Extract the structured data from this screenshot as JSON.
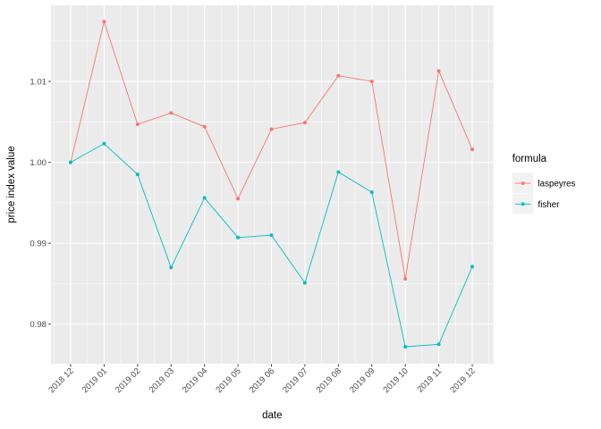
{
  "figure": {
    "background": "#FFFFFF",
    "panel_background": "#EBEBEB",
    "grid_color": "#FFFFFF",
    "tick_color": "#333333",
    "tick_label_color": "#4D4D4D",
    "axis_title_color": "#000000",
    "legend_key_background": "#F2F2F2"
  },
  "chart_data": {
    "type": "line",
    "title": "",
    "xlabel": "date",
    "ylabel": "price index value",
    "categories": [
      "2018 12",
      "2019 01",
      "2019 02",
      "2019 03",
      "2019 04",
      "2019 05",
      "2019 06",
      "2019 07",
      "2019 08",
      "2019 09",
      "2019 10",
      "2019 11",
      "2019 12"
    ],
    "series": [
      {
        "name": "laspeyres",
        "color": "#F8766D",
        "values": [
          1.0,
          1.0174,
          1.0047,
          1.0061,
          1.0044,
          0.9955,
          1.0041,
          1.0049,
          1.0107,
          1.01,
          0.9856,
          1.0113,
          1.0016
        ]
      },
      {
        "name": "fisher",
        "color": "#00BFC4",
        "values": [
          1.0,
          1.0023,
          0.9985,
          0.987,
          0.9956,
          0.9907,
          0.991,
          0.9851,
          0.9988,
          0.9963,
          0.9772,
          0.9775,
          0.9871
        ]
      }
    ],
    "y_ticks": [
      0.98,
      0.99,
      1.0,
      1.01
    ],
    "y_tick_labels": [
      "0.98",
      "0.99",
      "1.00",
      "1.01"
    ],
    "y_minor": [
      0.985,
      0.995,
      1.005,
      1.015
    ],
    "ylim": [
      0.9751,
      1.0194
    ],
    "grid": true,
    "legend": {
      "title": "formula",
      "position": "right",
      "entries": [
        "laspeyres",
        "fisher"
      ]
    }
  }
}
